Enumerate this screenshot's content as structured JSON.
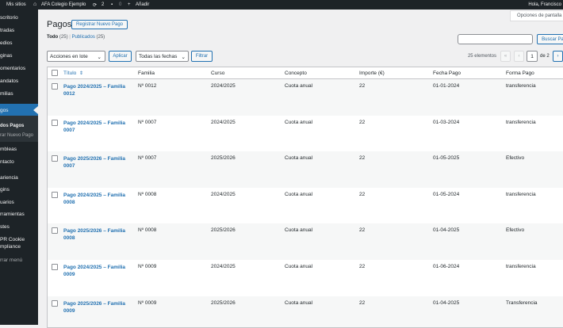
{
  "admin_bar": {
    "my_sites": "Mis sitios",
    "site_name": "AFA Colegio Ejemplo",
    "updates": "2",
    "comments": "0",
    "new": "Añadir",
    "greeting": "Hola, Francisco"
  },
  "sidebar": {
    "items": [
      "scritorio",
      "tradas",
      "edios",
      "ginas",
      "omentarios",
      "andatos",
      "milias",
      "gos",
      "dos Pagos",
      "rar Nuevo Pago",
      "mbleas",
      "ntacto",
      "ariencia",
      "gins",
      "uarios",
      "rramientas",
      "stes",
      "PR Cookie",
      "mpliance",
      "rrar menú"
    ]
  },
  "header": {
    "title": "Pagos",
    "add_button": "Registrar Nuevo Pago",
    "screen_options": "Opciones de pantalla"
  },
  "views": [
    {
      "label": "Todo",
      "count": "(25)"
    },
    {
      "label": "Publicados",
      "count": "(25)"
    }
  ],
  "views_separator": "|",
  "search": {
    "button": "Buscar Pa"
  },
  "filters": {
    "bulk_actions": "Acciones en lote",
    "apply": "Aplicar",
    "dates": "Todas las fechas",
    "filter": "Filtrar"
  },
  "pagination": {
    "items": "25 elementos",
    "first": "«",
    "prev": "‹",
    "current": "1",
    "of": "de 2",
    "next": "›"
  },
  "table": {
    "columns": [
      "Título",
      "Familia",
      "Curso",
      "Concepto",
      "Importe (€)",
      "Fecha Pago",
      "Forma Pago"
    ],
    "rows": [
      [
        "Pago 2024/2025 – Familia 0012",
        "Nº 0012",
        "2024/2025",
        "Cuota anual",
        "22",
        "01-01-2024",
        "transferencia"
      ],
      [
        "Pago 2024/2025 – Familia 0007",
        "Nº 0007",
        "2024/2025",
        "Cuota anual",
        "22",
        "01-03-2024",
        "transferencia"
      ],
      [
        "Pago 2025/2026 – Familia 0007",
        "Nº 0007",
        "2025/2026",
        "Cuota anual",
        "22",
        "01-05-2025",
        "Efectivo"
      ],
      [
        "Pago 2024/2025 – Familia 0008",
        "Nº 0008",
        "2024/2025",
        "Cuota anual",
        "22",
        "01-05-2024",
        "transferencia"
      ],
      [
        "Pago 2025/2026 – Familia 0008",
        "Nº 0008",
        "2025/2026",
        "Cuota anual",
        "22",
        "01-04-2025",
        "Efectivo"
      ],
      [
        "Pago 2024/2025 – Familia 0009",
        "Nº 0009",
        "2024/2025",
        "Cuota anual",
        "22",
        "01-06-2024",
        "transferencia"
      ],
      [
        "Pago 2025/2026 – Familia 0009",
        "Nº 0009",
        "2025/2026",
        "Cuota anual",
        "22",
        "01-04-2025",
        "Transferencia"
      ]
    ]
  }
}
